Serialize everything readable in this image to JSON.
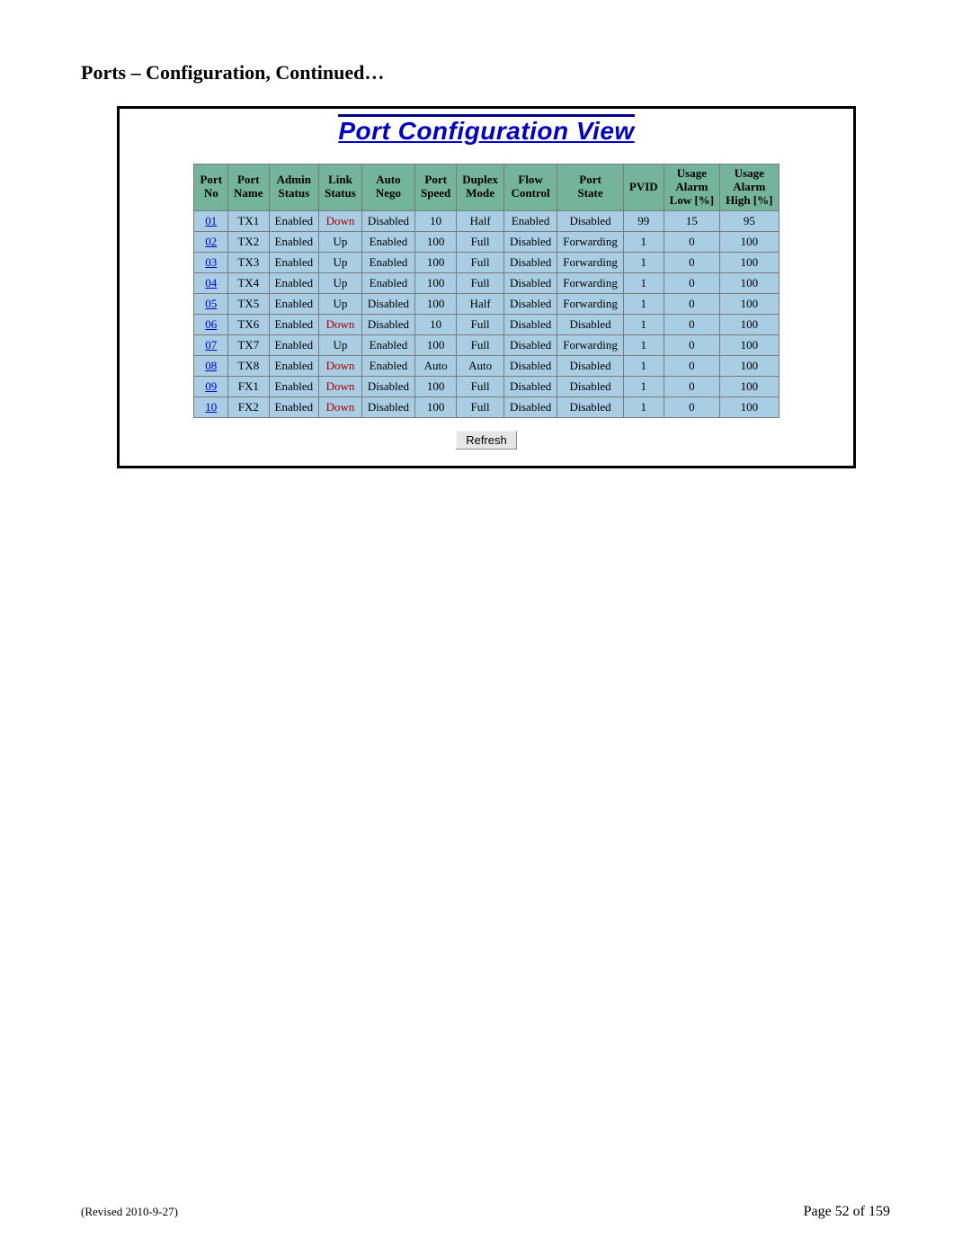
{
  "section_heading": "Ports – Configuration, Continued…",
  "panel_title": "Port Configuration View",
  "table": {
    "columns": [
      "Port\nNo",
      "Port\nName",
      "Admin\nStatus",
      "Link\nStatus",
      "Auto\nNego",
      "Port\nSpeed",
      "Duplex\nMode",
      "Flow\nControl",
      "Port\nState",
      "PVID",
      "Usage\nAlarm\nLow [%]",
      "Usage\nAlarm\nHigh [%]"
    ],
    "rows": [
      {
        "no": "01",
        "name": "TX1",
        "admin": "Enabled",
        "link": "Down",
        "nego": "Disabled",
        "speed": "10",
        "duplex": "Half",
        "flow": "Enabled",
        "state": "Disabled",
        "pvid": "99",
        "low": "15",
        "high": "95"
      },
      {
        "no": "02",
        "name": "TX2",
        "admin": "Enabled",
        "link": "Up",
        "nego": "Enabled",
        "speed": "100",
        "duplex": "Full",
        "flow": "Disabled",
        "state": "Forwarding",
        "pvid": "1",
        "low": "0",
        "high": "100"
      },
      {
        "no": "03",
        "name": "TX3",
        "admin": "Enabled",
        "link": "Up",
        "nego": "Enabled",
        "speed": "100",
        "duplex": "Full",
        "flow": "Disabled",
        "state": "Forwarding",
        "pvid": "1",
        "low": "0",
        "high": "100"
      },
      {
        "no": "04",
        "name": "TX4",
        "admin": "Enabled",
        "link": "Up",
        "nego": "Enabled",
        "speed": "100",
        "duplex": "Full",
        "flow": "Disabled",
        "state": "Forwarding",
        "pvid": "1",
        "low": "0",
        "high": "100"
      },
      {
        "no": "05",
        "name": "TX5",
        "admin": "Enabled",
        "link": "Up",
        "nego": "Disabled",
        "speed": "100",
        "duplex": "Half",
        "flow": "Disabled",
        "state": "Forwarding",
        "pvid": "1",
        "low": "0",
        "high": "100"
      },
      {
        "no": "06",
        "name": "TX6",
        "admin": "Enabled",
        "link": "Down",
        "nego": "Disabled",
        "speed": "10",
        "duplex": "Full",
        "flow": "Disabled",
        "state": "Disabled",
        "pvid": "1",
        "low": "0",
        "high": "100"
      },
      {
        "no": "07",
        "name": "TX7",
        "admin": "Enabled",
        "link": "Up",
        "nego": "Enabled",
        "speed": "100",
        "duplex": "Full",
        "flow": "Disabled",
        "state": "Forwarding",
        "pvid": "1",
        "low": "0",
        "high": "100"
      },
      {
        "no": "08",
        "name": "TX8",
        "admin": "Enabled",
        "link": "Down",
        "nego": "Enabled",
        "speed": "Auto",
        "duplex": "Auto",
        "flow": "Disabled",
        "state": "Disabled",
        "pvid": "1",
        "low": "0",
        "high": "100"
      },
      {
        "no": "09",
        "name": "FX1",
        "admin": "Enabled",
        "link": "Down",
        "nego": "Disabled",
        "speed": "100",
        "duplex": "Full",
        "flow": "Disabled",
        "state": "Disabled",
        "pvid": "1",
        "low": "0",
        "high": "100"
      },
      {
        "no": "10",
        "name": "FX2",
        "admin": "Enabled",
        "link": "Down",
        "nego": "Disabled",
        "speed": "100",
        "duplex": "Full",
        "flow": "Disabled",
        "state": "Disabled",
        "pvid": "1",
        "low": "0",
        "high": "100"
      }
    ]
  },
  "refresh_label": "Refresh",
  "footer": {
    "revised": "(Revised 2010-9-27)",
    "page": "Page 52 of 159"
  },
  "colors": {
    "header_bg": "#74b39c",
    "cell_bg": "#a9cde3",
    "link_color": "#0000cc",
    "down_color": "#aa0000",
    "title_color": "#0000cc"
  }
}
